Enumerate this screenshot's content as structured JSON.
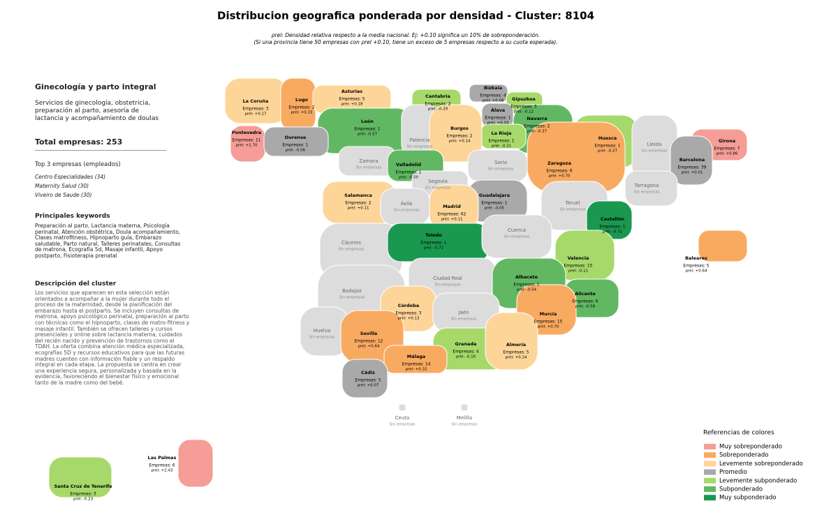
{
  "header": {
    "title": "Distribucion geografica ponderada por densidad - Cluster: 8104",
    "subtitle_lines": [
      "ρrel: Densidad relativa respecto a la media nacional. Ej: +0.10 significa un 10% de sobreponderación.",
      "(Si una provincia tiene 50 empresas con ρrel +0.10, tiene un exceso de 5 empresas respecto a su cuota esperada)."
    ]
  },
  "sidebar": {
    "cluster_name": "Ginecología y parto integral",
    "summary": "Servicios de ginecología, obstetricia, preparación al parto, asesoría de lactancia y acompañamiento de doulas",
    "total": "Total empresas: 253",
    "top_heading": "Top 3 empresas (empleados)",
    "top": [
      "Centro Especialidades (34)",
      "Maternity Salud (30)",
      "Viveiro de Saude (30)"
    ],
    "keywords_heading": "Principales keywords",
    "keywords": "Preparación al parto, Lactancia materna, Psicología perinatal, Atención obstétrica, Doula acompañamiento, Clases matrofitness, Hipnoparto guía, Embarazo saludable, Parto natural, Talleres perinatales, Consultas de matrona, Ecografía 5d, Masaje infantil, Apoyo postparto, Fisioterapia prenatal",
    "description_heading": "Descripción del cluster",
    "description": "Los servicios que aparecen en esta selección están orientados a acompañar a la mujer durante todo el proceso de la maternidad, desde la planificación del embarazo hasta el postparto. Se incluyen consultas de matrona, apoyo psicológico perinatal, preparación al parto con técnicas como el hipnoparto, clases de matro-fitness y masaje infantil. También se ofrecen talleres y cursos presenciales y online sobre lactancia materna, cuidados del recién nacido y prevención de trastornos como el TDAH. La oferta combina atención médica especializada, ecografías 5D y recursos educativos para que las futuras madres cuenten con información fiable y un respaldo integral en cada etapa. La propuesta se centra en crear una experiencia segura, personalizada y basada en la evidencia, favoreciendo el bienestar físico y emocional tanto de la madre como del bebé."
  },
  "legend": {
    "title": "Referencias de colores",
    "items": [
      {
        "label": "Muy sobreponderado",
        "color": "#f59d96"
      },
      {
        "label": "Sobreponderado",
        "color": "#f9aa61"
      },
      {
        "label": "Levemente sobreponderado",
        "color": "#fdd598"
      },
      {
        "label": "Promedio",
        "color": "#a9a9a9"
      },
      {
        "label": "Levemente subponderado",
        "color": "#a6d96a"
      },
      {
        "label": "Subponderado",
        "color": "#62b862"
      },
      {
        "label": "Muy subponderado",
        "color": "#1a9850"
      }
    ]
  },
  "provinces": [
    {
      "name": "La Coruña",
      "empresas": "Empresas: 3",
      "rho": "ρrel: +0.17",
      "color": "#fdd598"
    },
    {
      "name": "Lugo",
      "empresas": "Empresas: 2",
      "rho": "ρrel: +0.33",
      "color": "#f9aa61"
    },
    {
      "name": "Asturias",
      "empresas": "Empresas: 5",
      "rho": "ρrel: +0.18",
      "color": "#fdd598"
    },
    {
      "name": "Cantabria",
      "empresas": "Empresas: 2",
      "rho": "ρrel: -0.29",
      "color": "#a6d96a"
    },
    {
      "name": "Bizkaia",
      "empresas": "Empresas: 4",
      "rho": "ρrel: +0.06",
      "color": "#a9a9a9"
    },
    {
      "name": "Gipuzkoa",
      "empresas": "Empresas: 3",
      "rho": "ρrel: -0.12",
      "color": "#a6d96a"
    },
    {
      "name": "Álava",
      "empresas": "Empresas: 1",
      "rho": "ρrel: +0.03",
      "color": "#a9a9a9"
    },
    {
      "name": "Navarra",
      "empresas": "Empresas: 2",
      "rho": "ρrel: -0.37",
      "color": "#62b862"
    },
    {
      "name": "La Rioja",
      "empresas": "Empresas: 1",
      "rho": "ρrel: -0.21",
      "color": "#a6d96a"
    },
    {
      "name": "León",
      "empresas": "Empresas: 1",
      "rho": "ρrel: -0.57",
      "color": "#62b862"
    },
    {
      "name": "Pontevedra",
      "empresas": "Empresas: 11",
      "rho": "ρrel: +1.70",
      "color": "#f59d96"
    },
    {
      "name": "Ourense",
      "empresas": "Empresas: 1",
      "rho": "ρrel: -0.06",
      "color": "#a9a9a9"
    },
    {
      "name": "Palencia",
      "empresas": "Sin empresas",
      "color": "#dcdcdc"
    },
    {
      "name": "Burgos",
      "empresas": "Empresas: 2",
      "rho": "ρrel: +0.14",
      "color": "#fdd598"
    },
    {
      "name": "Huesca",
      "empresas": "Empresas: 1",
      "rho": "ρrel: -0.27",
      "color": "#a6d96a"
    },
    {
      "name": "Lleida",
      "empresas": "Sin empresas",
      "color": "#dcdcdc"
    },
    {
      "name": "Girona",
      "empresas": "Empresas: 7",
      "rho": "ρrel: +0.86",
      "color": "#f59d96"
    },
    {
      "name": "Barcelona",
      "empresas": "Empresas: 39",
      "rho": "ρrel: +0.01",
      "color": "#a9a9a9"
    },
    {
      "name": "Zamora",
      "empresas": "Sin empresas",
      "color": "#dcdcdc"
    },
    {
      "name": "Valladolid",
      "empresas": "Empresas: 1",
      "rho": "ρrel: -0.50",
      "color": "#62b862"
    },
    {
      "name": "Soria",
      "empresas": "Sin empresas",
      "color": "#dcdcdc"
    },
    {
      "name": "Zaragoza",
      "empresas": "Empresas: 6",
      "rho": "ρrel: +0.70",
      "color": "#f9aa61"
    },
    {
      "name": "Tarragona",
      "empresas": "Sin empresas",
      "color": "#dcdcdc"
    },
    {
      "name": "Segovia",
      "empresas": "Sin empresas",
      "color": "#dcdcdc"
    },
    {
      "name": "Salamanca",
      "empresas": "Empresas: 2",
      "rho": "ρrel: +0.11",
      "color": "#fdd598"
    },
    {
      "name": "Ávila",
      "empresas": "Sin empresas",
      "color": "#dcdcdc"
    },
    {
      "name": "Guadalajara",
      "empresas": "Empresas: 1",
      "rho": "ρrel: -0.05",
      "color": "#a9a9a9"
    },
    {
      "name": "Madrid",
      "empresas": "Empresas: 62",
      "rho": "ρrel: +0.11",
      "color": "#fdd598"
    },
    {
      "name": "Teruel",
      "empresas": "Sin empresas",
      "color": "#dcdcdc"
    },
    {
      "name": "Castellón",
      "empresas": "Empresas: 1",
      "rho": "ρrel: -0.71",
      "color": "#1a9850"
    },
    {
      "name": "Cáceres",
      "empresas": "Sin empresas",
      "color": "#dcdcdc"
    },
    {
      "name": "Toledo",
      "empresas": "Empresas: 1",
      "rho": "ρrel: -0.72",
      "color": "#1a9850"
    },
    {
      "name": "Cuenca",
      "empresas": "Sin empresas",
      "color": "#dcdcdc"
    },
    {
      "name": "Valencia",
      "empresas": "Empresas: 15",
      "rho": "ρrel: -0.11",
      "color": "#a6d96a"
    },
    {
      "name": "Baleares",
      "empresas": "Empresas: 5",
      "rho": "ρrel: +0.64",
      "color": "#f9aa61"
    },
    {
      "name": "Ciudad Real",
      "empresas": "Sin empresas",
      "color": "#dcdcdc"
    },
    {
      "name": "Badajoz",
      "empresas": "Sin empresas",
      "color": "#dcdcdc"
    },
    {
      "name": "Albacete",
      "empresas": "Empresas: 1",
      "rho": "ρrel: -0.54",
      "color": "#62b862"
    },
    {
      "name": "Alicante",
      "empresas": "Empresas: 6",
      "rho": "ρrel: -0.58",
      "color": "#62b862"
    },
    {
      "name": "Córdoba",
      "empresas": "Empresas: 3",
      "rho": "ρrel: +0.13",
      "color": "#fdd598"
    },
    {
      "name": "Jaén",
      "empresas": "Sin empresas",
      "color": "#dcdcdc"
    },
    {
      "name": "Murcia",
      "empresas": "Empresas: 15",
      "rho": "ρrel: +0.70",
      "color": "#f9aa61"
    },
    {
      "name": "Huelva",
      "empresas": "Sin empresas",
      "color": "#dcdcdc"
    },
    {
      "name": "Sevilla",
      "empresas": "Empresas: 12",
      "rho": "ρrel: +0.64",
      "color": "#f9aa61"
    },
    {
      "name": "Granada",
      "empresas": "Empresas: 4",
      "rho": "ρrel: -0.16",
      "color": "#a6d96a"
    },
    {
      "name": "Almería",
      "empresas": "Empresas: 5",
      "rho": "ρrel: +0.24",
      "color": "#fdd598"
    },
    {
      "name": "Málaga",
      "empresas": "Empresas: 14",
      "rho": "ρrel: +0.32",
      "color": "#f9aa61"
    },
    {
      "name": "Cádiz",
      "empresas": "Empresas: 5",
      "rho": "ρrel: +0.07",
      "color": "#a9a9a9"
    },
    {
      "name": "Ceuta",
      "empresas": "Sin empresas",
      "color": "#dcdcdc"
    },
    {
      "name": "Melilla",
      "empresas": "Sin empresas",
      "color": "#dcdcdc"
    },
    {
      "name": "Las Palmas",
      "empresas": "Empresas: 6",
      "rho": "ρrel: +2.43",
      "color": "#f59d96"
    },
    {
      "name": "Santa Cruz de Tenerife",
      "empresas": "Empresas: 3",
      "rho": "ρrel: -0.23",
      "color": "#a6d96a"
    }
  ]
}
